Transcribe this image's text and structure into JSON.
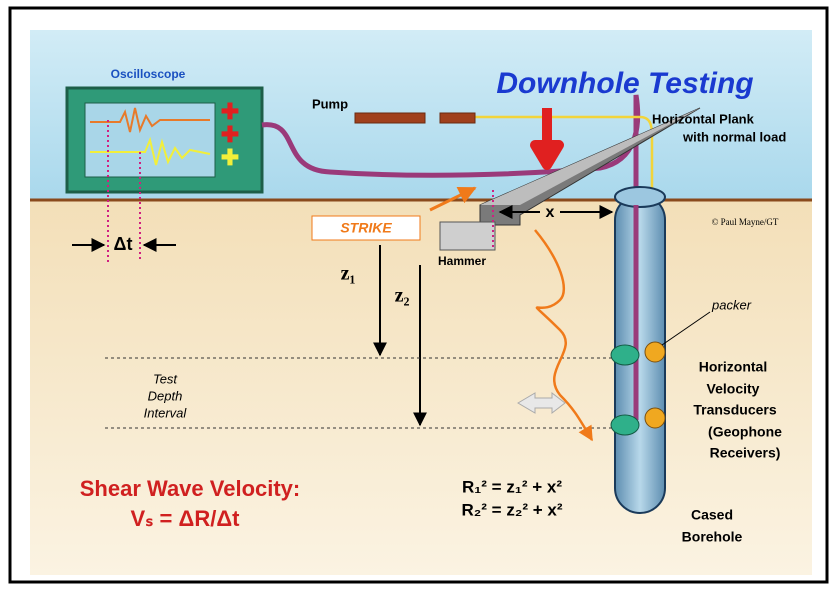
{
  "oscilloscope": "Oscilloscope",
  "title": "Downhole Testing",
  "pump": "Pump",
  "plank": [
    "Horizontal Plank",
    "with normal load"
  ],
  "strike": "STRIKE",
  "offset": "x",
  "hammer": "Hammer",
  "credit": "© Paul Mayne/GT",
  "delta_t": "Δt",
  "z1": "z₁",
  "z2": "z₂",
  "packer": "packer",
  "interval": [
    "Test",
    "Depth",
    "Interval"
  ],
  "transducers": [
    "Horizontal",
    "Velocity",
    "Transducers",
    "(Geophone",
    "Receivers)"
  ],
  "velocity": [
    "Shear Wave Velocity:",
    "Vₛ = ΔR/Δt"
  ],
  "equations": [
    "R₁² = z₁² + x²",
    "R₂² = z₂² + x²"
  ],
  "borehole": [
    "Cased",
    "Borehole"
  ]
}
